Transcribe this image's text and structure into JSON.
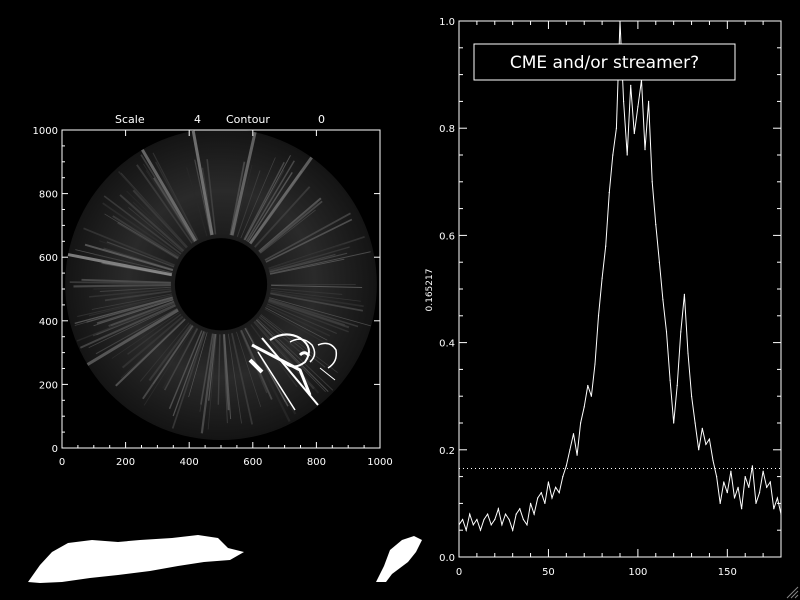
{
  "left_panel": {
    "scale_label": "Scale",
    "scale_value": "4",
    "contour_label": "Contour",
    "contour_value": "0",
    "x_ticks": [
      "0",
      "200",
      "400",
      "600",
      "800",
      "1000"
    ],
    "y_ticks": [
      "0",
      "200",
      "400",
      "600",
      "800",
      "1000"
    ],
    "xlim": [
      0,
      1000
    ],
    "ylim": [
      0,
      1000
    ],
    "occulter_center": [
      500,
      515
    ],
    "occulter_radius": 145,
    "field_radius": 490
  },
  "chart_data": {
    "type": "line",
    "title": "",
    "xlabel": "",
    "ylabel": "0.165217",
    "xlim": [
      0,
      180
    ],
    "ylim": [
      0,
      1.0
    ],
    "x_ticks": [
      "0",
      "50",
      "100",
      "150"
    ],
    "y_ticks": [
      "0.0",
      "0.2",
      "0.4",
      "0.6",
      "0.8",
      "1.0"
    ],
    "threshold": 0.165217,
    "annotation": "CME and/or streamer?",
    "series": [
      {
        "x": [
          0,
          2,
          4,
          6,
          8,
          10,
          12,
          14,
          16,
          18,
          20,
          22,
          24,
          26,
          28,
          30,
          32,
          34,
          36,
          38,
          40,
          42,
          44,
          46,
          48,
          50,
          52,
          54,
          56,
          58,
          60,
          62,
          64,
          66,
          68,
          70,
          72,
          74,
          76,
          78,
          80,
          82,
          84,
          86,
          88,
          90,
          92,
          94,
          96,
          98,
          100,
          102,
          104,
          106,
          108,
          110,
          112,
          114,
          116,
          118,
          120,
          122,
          124,
          126,
          128,
          130,
          132,
          134,
          136,
          138,
          140,
          142,
          144,
          146,
          148,
          150,
          152,
          154,
          156,
          158,
          160,
          162,
          164,
          166,
          168,
          170,
          172,
          174,
          176,
          178,
          180
        ],
        "values": [
          0.06,
          0.07,
          0.05,
          0.08,
          0.06,
          0.07,
          0.05,
          0.07,
          0.08,
          0.06,
          0.07,
          0.09,
          0.06,
          0.08,
          0.07,
          0.05,
          0.08,
          0.09,
          0.07,
          0.06,
          0.1,
          0.08,
          0.11,
          0.12,
          0.1,
          0.14,
          0.11,
          0.13,
          0.12,
          0.15,
          0.17,
          0.2,
          0.23,
          0.19,
          0.25,
          0.28,
          0.32,
          0.3,
          0.36,
          0.45,
          0.52,
          0.58,
          0.68,
          0.75,
          0.8,
          1.0,
          0.85,
          0.75,
          0.88,
          0.79,
          0.84,
          0.89,
          0.76,
          0.85,
          0.7,
          0.62,
          0.55,
          0.48,
          0.42,
          0.33,
          0.25,
          0.32,
          0.42,
          0.49,
          0.38,
          0.3,
          0.25,
          0.2,
          0.24,
          0.21,
          0.22,
          0.18,
          0.15,
          0.1,
          0.14,
          0.12,
          0.16,
          0.11,
          0.13,
          0.09,
          0.15,
          0.13,
          0.17,
          0.1,
          0.12,
          0.16,
          0.13,
          0.14,
          0.09,
          0.11,
          0.08
        ]
      }
    ]
  }
}
